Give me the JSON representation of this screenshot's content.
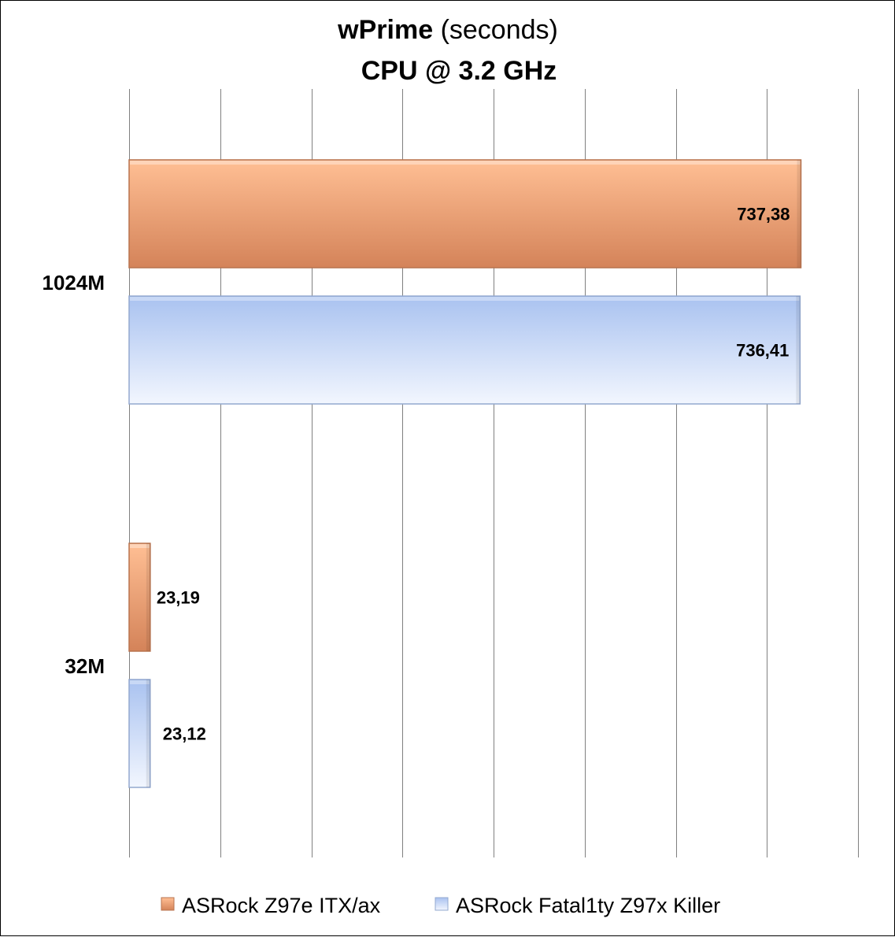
{
  "title": {
    "bold": "wPrime",
    "normal": "(seconds)",
    "subtitle": "CPU @ 3.2 GHz"
  },
  "chart_data": {
    "type": "bar",
    "orientation": "horizontal",
    "title": "wPrime (seconds)",
    "subtitle": "CPU @ 3.2 GHz",
    "categories": [
      "1024M",
      "32M"
    ],
    "series": [
      {
        "name": "ASRock Z97e ITX/ax",
        "values": [
          737.38,
          23.19
        ],
        "labels": [
          "737,38",
          "23,19"
        ],
        "color": "#e8956a"
      },
      {
        "name": "ASRock Fatal1ty Z97x Killer",
        "values": [
          736.41,
          23.12
        ],
        "labels": [
          "736,41",
          "23,12"
        ],
        "color": "#b8cef2"
      }
    ],
    "xlim": [
      0,
      800
    ],
    "xticks": [
      0,
      100,
      200,
      300,
      400,
      500,
      600,
      700,
      800
    ],
    "tick_labels_shown": false,
    "grid": "vertical",
    "legend_position": "bottom"
  },
  "colors": {
    "orange_light": "#ffbf94",
    "orange_dark": "#d48359",
    "blue_dark": "#a9c2f0",
    "blue_light": "#f2f6fe",
    "grid": "#808080"
  }
}
